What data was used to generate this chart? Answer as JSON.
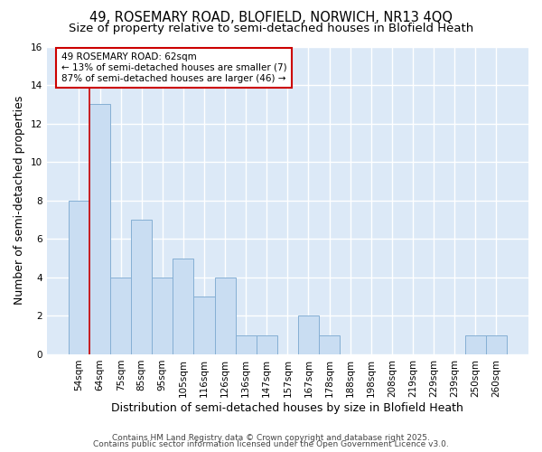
{
  "title1": "49, ROSEMARY ROAD, BLOFIELD, NORWICH, NR13 4QQ",
  "title2": "Size of property relative to semi-detached houses in Blofield Heath",
  "xlabel": "Distribution of semi-detached houses by size in Blofield Heath",
  "ylabel": "Number of semi-detached properties",
  "categories": [
    "54sqm",
    "64sqm",
    "75sqm",
    "85sqm",
    "95sqm",
    "105sqm",
    "116sqm",
    "126sqm",
    "136sqm",
    "147sqm",
    "157sqm",
    "167sqm",
    "178sqm",
    "188sqm",
    "198sqm",
    "208sqm",
    "219sqm",
    "229sqm",
    "239sqm",
    "250sqm",
    "260sqm"
  ],
  "values": [
    8,
    13,
    4,
    7,
    4,
    5,
    3,
    4,
    1,
    1,
    0,
    2,
    1,
    0,
    0,
    0,
    0,
    0,
    0,
    1,
    1
  ],
  "bar_color": "#c9ddf2",
  "bar_edge_color": "#85afd4",
  "annotation_text": "49 ROSEMARY ROAD: 62sqm\n← 13% of semi-detached houses are smaller (7)\n87% of semi-detached houses are larger (46) →",
  "annotation_box_color": "#ffffff",
  "annotation_box_edge": "#cc0000",
  "red_line_x": 1,
  "ylim": [
    0,
    16
  ],
  "yticks": [
    0,
    2,
    4,
    6,
    8,
    10,
    12,
    14,
    16
  ],
  "footer1": "Contains HM Land Registry data © Crown copyright and database right 2025.",
  "footer2": "Contains public sector information licensed under the Open Government Licence v3.0.",
  "fig_bg_color": "#ffffff",
  "plot_bg_color": "#dce9f7",
  "grid_color": "#ffffff",
  "title_fontsize": 10.5,
  "subtitle_fontsize": 9.5,
  "tick_fontsize": 7.5,
  "ylabel_fontsize": 9,
  "xlabel_fontsize": 9
}
